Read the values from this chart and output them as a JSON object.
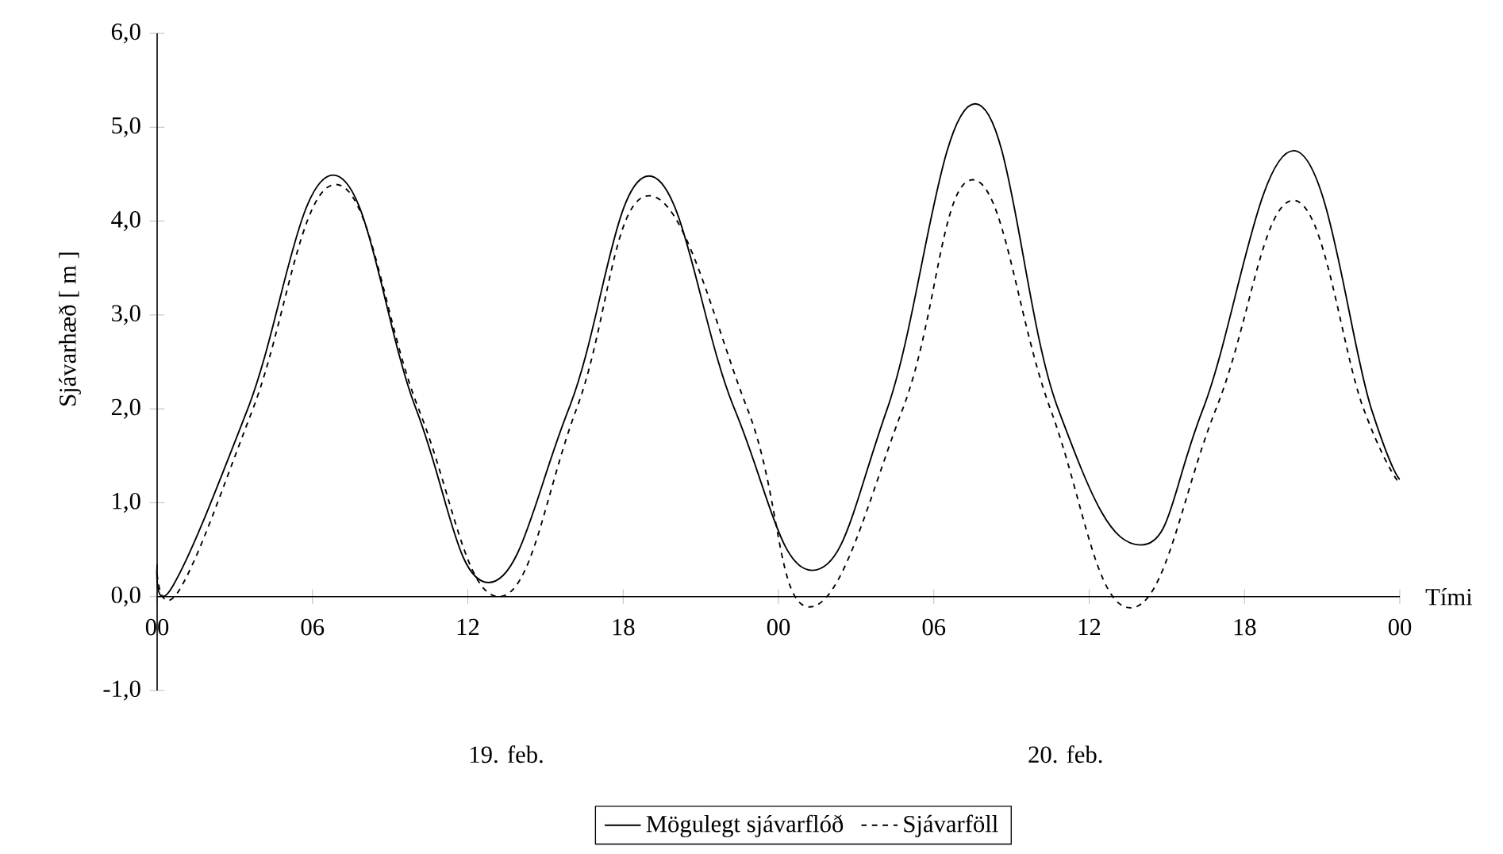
{
  "chart_data": {
    "type": "line",
    "xlabel": "Tími",
    "ylabel": "Sjávarhæð [ m ]",
    "xlim": [
      0,
      48
    ],
    "ylim": [
      -1,
      6
    ],
    "xticks": [
      {
        "value": 0,
        "label": "00"
      },
      {
        "value": 6,
        "label": "06"
      },
      {
        "value": 12,
        "label": "12"
      },
      {
        "value": 18,
        "label": "18"
      },
      {
        "value": 24,
        "label": "00"
      },
      {
        "value": 30,
        "label": "06"
      },
      {
        "value": 36,
        "label": "12"
      },
      {
        "value": 42,
        "label": "18"
      },
      {
        "value": 48,
        "label": "00"
      }
    ],
    "yticks": [
      {
        "value": -1,
        "label": "-1,0"
      },
      {
        "value": 0,
        "label": "0,0"
      },
      {
        "value": 1,
        "label": "1,0"
      },
      {
        "value": 2,
        "label": "2,0"
      },
      {
        "value": 3,
        "label": "3,0"
      },
      {
        "value": 4,
        "label": "4,0"
      },
      {
        "value": 5,
        "label": "5,0"
      },
      {
        "value": 6,
        "label": "6,0"
      }
    ],
    "series": [
      {
        "name": "Mögulegt sjávarflóð",
        "color": "#000000",
        "line_style": "solid",
        "x": [
          0,
          0.6,
          3.5,
          6.8,
          10.0,
          12.8,
          15.9,
          19.0,
          22.3,
          25.3,
          28.2,
          31.6,
          34.8,
          38.0,
          40.4,
          43.9,
          46.9,
          48
        ],
        "values": [
          0.34,
          0.11,
          2.0,
          4.49,
          2.0,
          0.15,
          2.0,
          4.48,
          2.0,
          0.28,
          2.0,
          5.25,
          2.0,
          0.55,
          2.0,
          4.75,
          2.0,
          1.25
        ]
      },
      {
        "name": "Sjávarföll",
        "color": "#000000",
        "line_style": "dashed",
        "x": [
          0,
          0.9,
          3.7,
          6.9,
          10.1,
          13.2,
          16.2,
          19.0,
          22.8,
          25.2,
          28.8,
          31.5,
          34.5,
          37.6,
          40.9,
          43.9,
          46.6,
          48
        ],
        "values": [
          0.24,
          0.09,
          2.0,
          4.39,
          2.0,
          0.0,
          2.0,
          4.27,
          2.0,
          -0.11,
          2.0,
          4.44,
          2.0,
          -0.12,
          2.0,
          4.22,
          2.0,
          1.2
        ]
      }
    ],
    "annotations": [
      "19. feb.",
      "20. feb."
    ],
    "legend": "bottom",
    "grid": false,
    "marker": "none"
  }
}
